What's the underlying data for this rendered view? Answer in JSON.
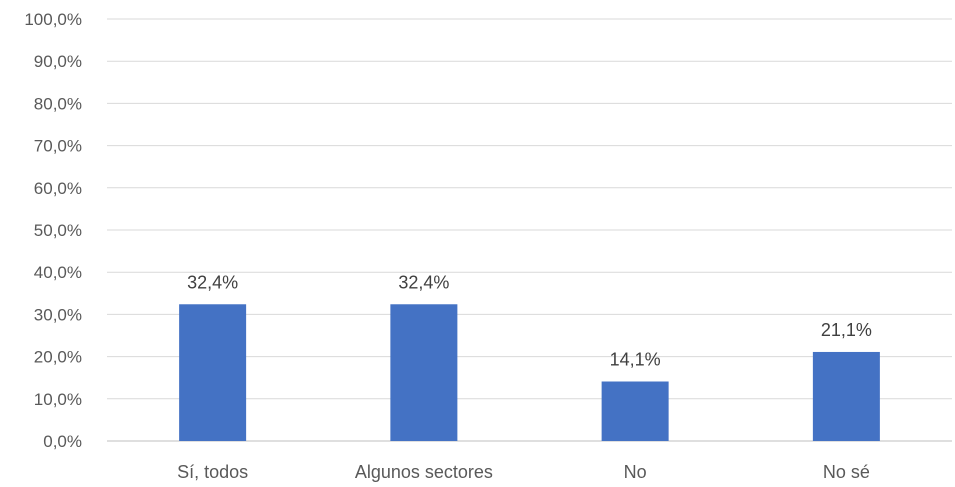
{
  "chart_data": {
    "type": "bar",
    "categories": [
      "Sí, todos",
      "Algunos sectores",
      "No",
      "No sé"
    ],
    "values": [
      32.4,
      32.4,
      14.1,
      21.1
    ],
    "data_labels": [
      "32,4%",
      "32,4%",
      "14,1%",
      "21,1%"
    ],
    "yticks": [
      {
        "value": 0,
        "label": "0,0%"
      },
      {
        "value": 10,
        "label": "10,0%"
      },
      {
        "value": 20,
        "label": "20,0%"
      },
      {
        "value": 30,
        "label": "30,0%"
      },
      {
        "value": 40,
        "label": "40,0%"
      },
      {
        "value": 50,
        "label": "50,0%"
      },
      {
        "value": 60,
        "label": "60,0%"
      },
      {
        "value": 70,
        "label": "70,0%"
      },
      {
        "value": 80,
        "label": "80,0%"
      },
      {
        "value": 90,
        "label": "90,0%"
      },
      {
        "value": 100,
        "label": "100,0%"
      }
    ],
    "ylim": [
      0,
      100
    ],
    "grid": true,
    "legend": "none",
    "bar_color": "#4472c4",
    "title": "",
    "xlabel": "",
    "ylabel": ""
  }
}
